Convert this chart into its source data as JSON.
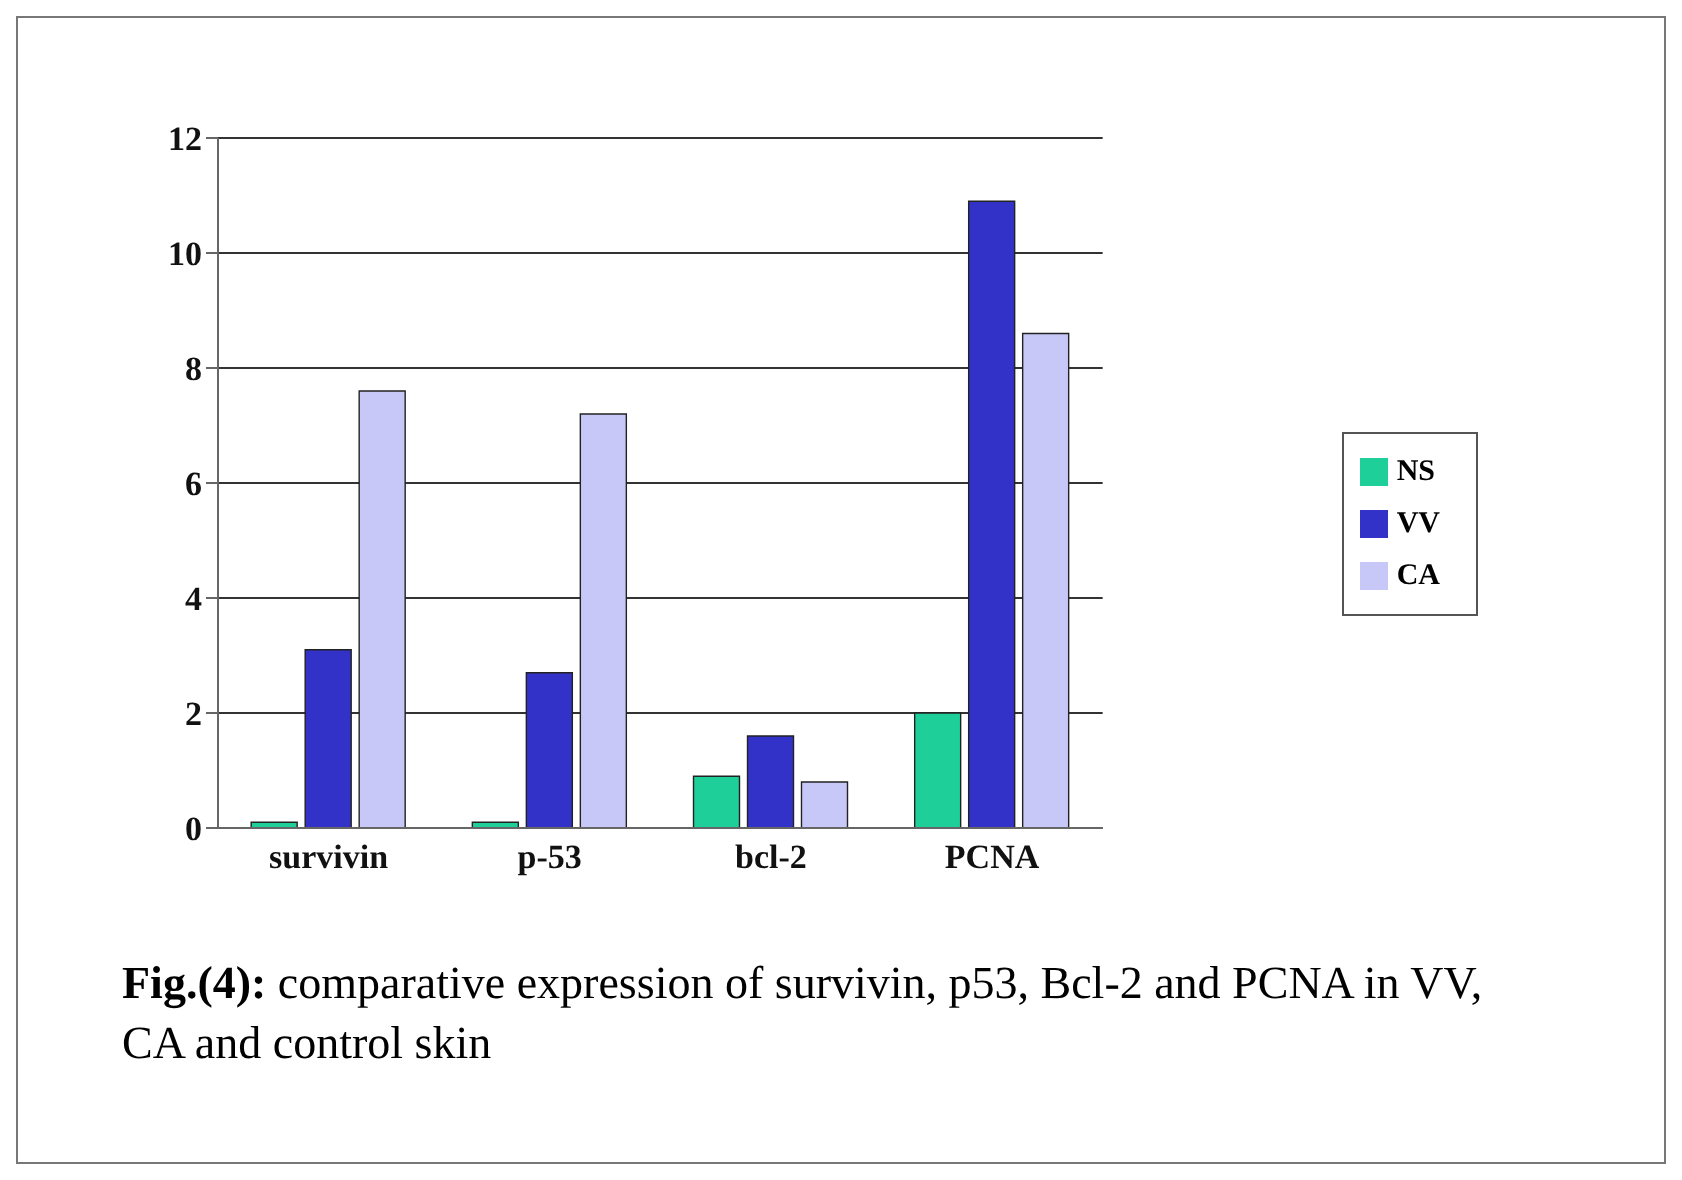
{
  "chart_data": {
    "type": "bar",
    "categories": [
      "survivin",
      "p-53",
      "bcl-2",
      "PCNA"
    ],
    "series": [
      {
        "name": "NS",
        "color": "#1fcf9a",
        "values": [
          0.1,
          0.1,
          0.9,
          2.0
        ]
      },
      {
        "name": "VV",
        "color": "#3232c8",
        "values": [
          3.1,
          2.7,
          1.6,
          10.9
        ]
      },
      {
        "name": "CA",
        "color": "#c8c8f8",
        "values": [
          7.6,
          7.2,
          0.8,
          8.6
        ]
      }
    ],
    "ylim": [
      0,
      12
    ],
    "yticks": [
      0,
      2,
      4,
      6,
      8,
      10,
      12
    ],
    "grid": "y",
    "legend": "right",
    "annotations": [
      "Fig.(4): comparative expression of survivin, p53, Bcl-2 and PCNA in VV, CA and control skin"
    ]
  }
}
